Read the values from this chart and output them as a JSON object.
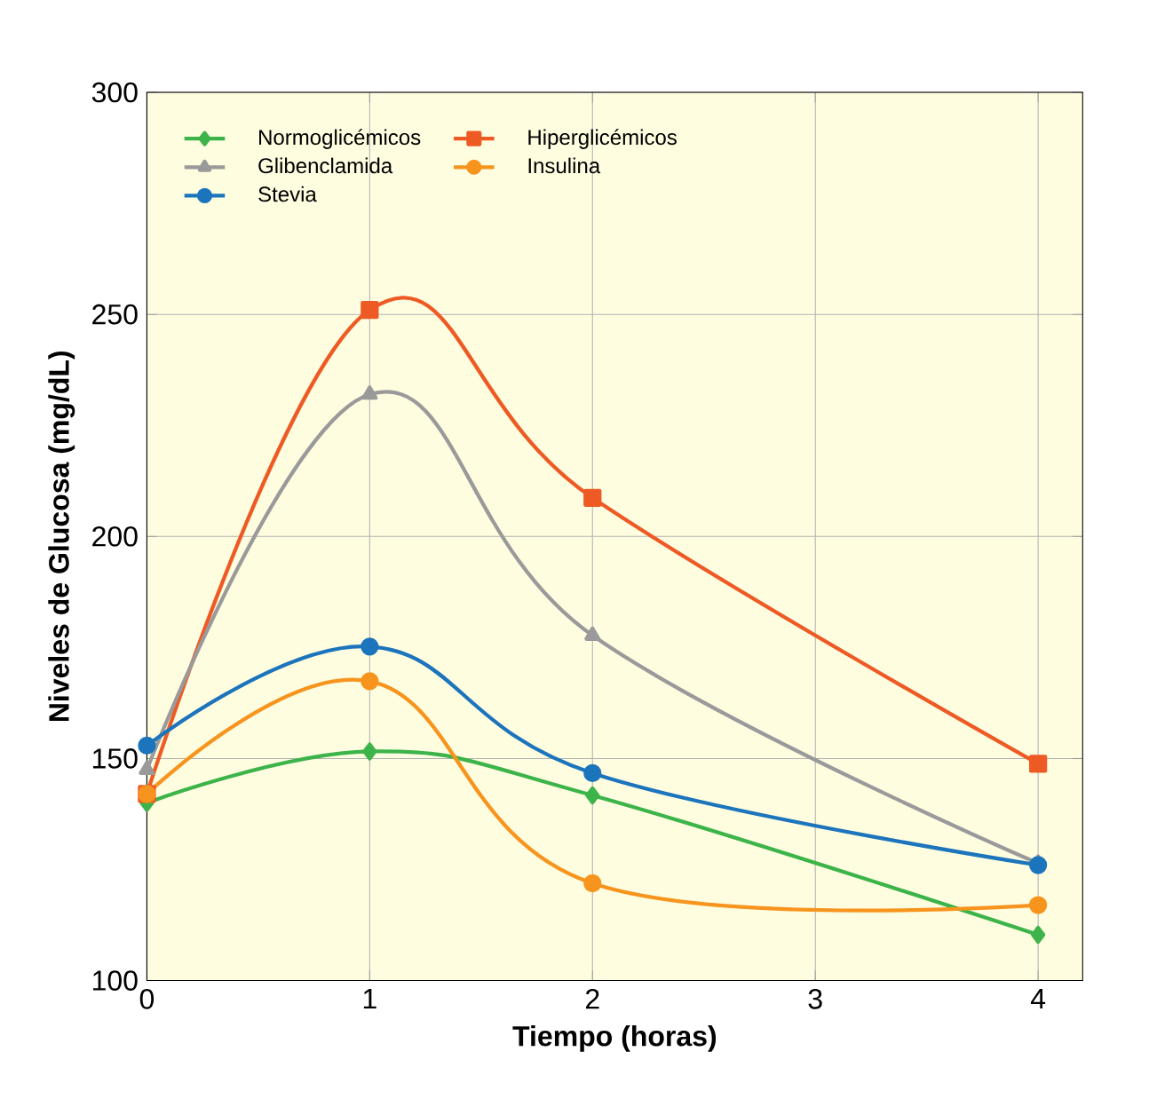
{
  "chart_data": {
    "type": "line",
    "xlabel": "Tiempo (horas)",
    "ylabel": "Niveles de Glucosa (mg/dL)",
    "x": [
      0,
      1,
      2,
      4
    ],
    "series": [
      {
        "name": "Normoglicémicos",
        "color": "#3cb44a",
        "marker": "diamond",
        "values": [
          140,
          151.6,
          141.7,
          110.3
        ]
      },
      {
        "name": "Hiperglicémicos",
        "color": "#ee5a24",
        "marker": "square",
        "values": [
          142,
          251,
          208.7,
          148.8
        ]
      },
      {
        "name": "Glibenclamida",
        "color": "#9a9a9a",
        "marker": "triangle",
        "values": [
          147.5,
          232,
          177.7,
          126.4
        ]
      },
      {
        "name": "Insulina",
        "color": "#f7941d",
        "marker": "circle",
        "values": [
          142,
          167.4,
          121.9,
          117
        ]
      },
      {
        "name": "Stevia",
        "color": "#1c75bc",
        "marker": "circle",
        "values": [
          152.9,
          175.2,
          146.7,
          126
        ]
      }
    ],
    "xlim": [
      0,
      4.2
    ],
    "xticks": [
      0,
      1,
      2,
      3,
      4
    ],
    "ylim": [
      100,
      300
    ],
    "yticks": [
      100,
      150,
      200,
      250,
      300
    ],
    "grid": true,
    "legend": "top left",
    "line_style": "solid"
  }
}
